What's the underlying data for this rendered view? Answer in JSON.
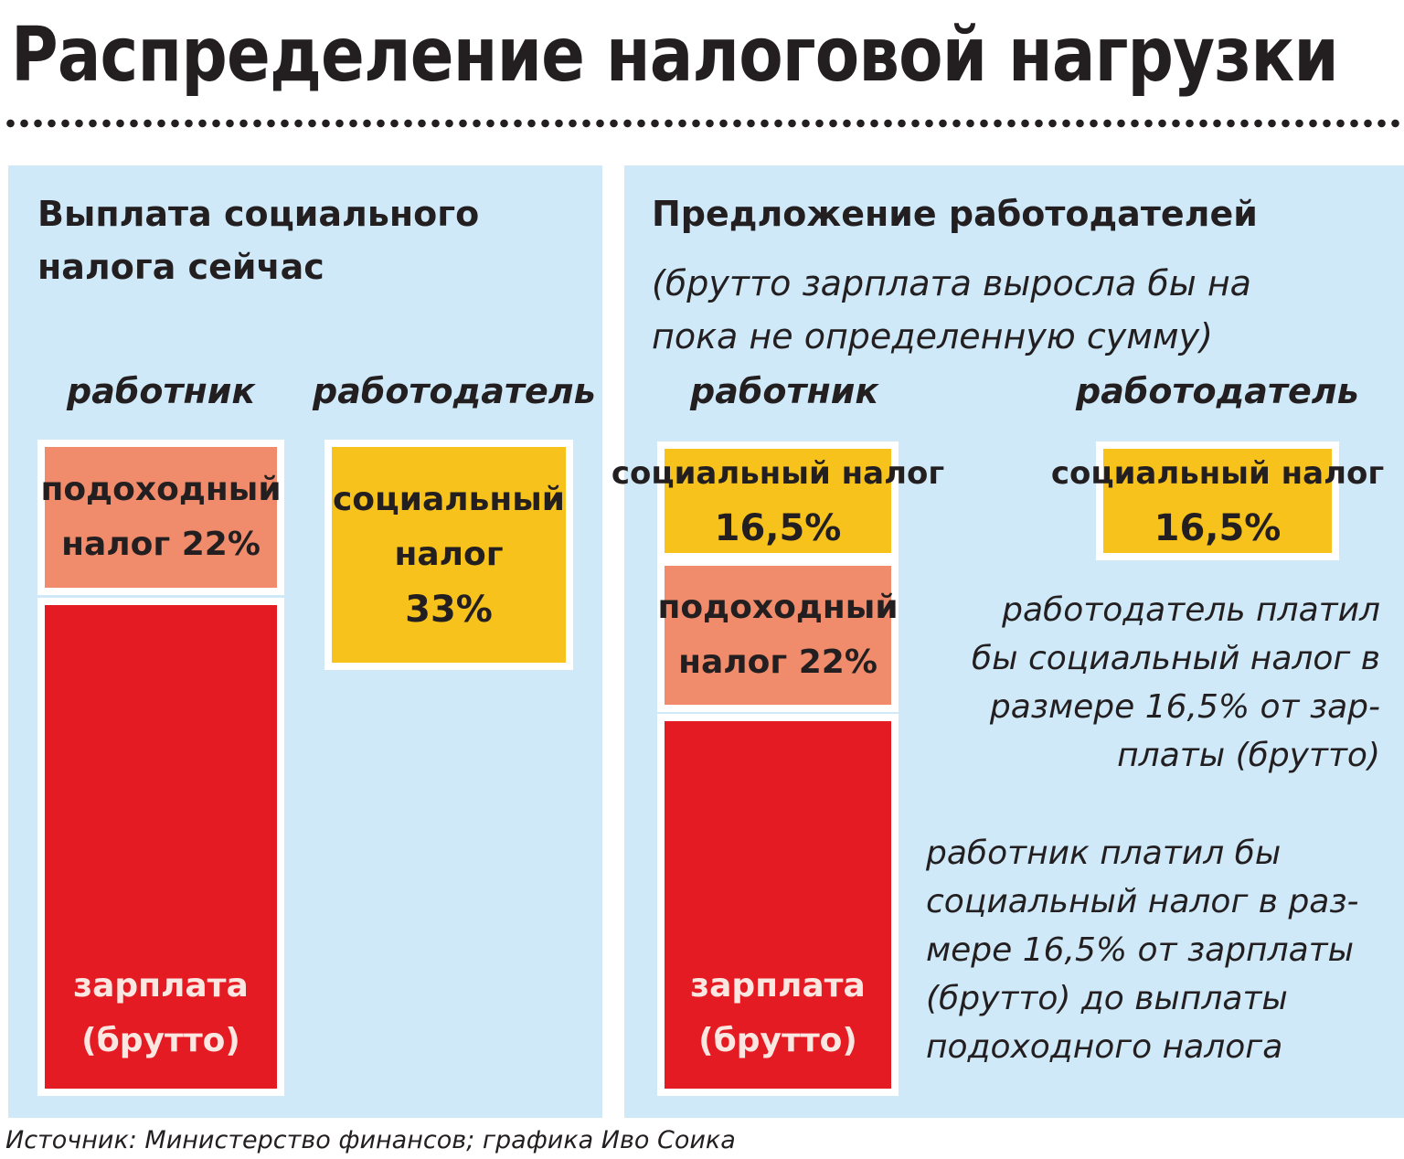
{
  "title": "Распределение налоговой нагрузки",
  "left_panel": {
    "heading": [
      "Выплата социального",
      "налога сейчас"
    ],
    "col_employee": "работник",
    "col_employer": "работодатель",
    "employee_income_tax": [
      "подоходный",
      "налог 22%"
    ],
    "employee_salary": [
      "зарплата",
      "(брутто)"
    ],
    "employer_social_tax": [
      "социальный",
      "налог",
      "33%"
    ]
  },
  "right_panel": {
    "heading": "Предложение работодателей",
    "subheading": [
      "(брутто зарплата выросла бы на",
      "пока не определенную сумму)"
    ],
    "col_employee": "работник",
    "col_employer": "работодатель",
    "employee_social_tax": [
      "социальный налог",
      "16,5%"
    ],
    "employee_income_tax": [
      "подоходный",
      "налог 22%"
    ],
    "employee_salary": [
      "зарплата",
      "(брутто)"
    ],
    "employer_social_tax": [
      "социальный налог",
      "16,5%"
    ],
    "employer_note": [
      "работодатель платил",
      "бы социальный налог в",
      "размере 16,5% от зар-",
      "платы (брутто)"
    ],
    "employee_note": [
      "работник платил бы",
      "социальный налог в раз-",
      "мере 16,5% от зарплаты",
      "(брутто) до выплаты",
      "подоходного налога"
    ]
  },
  "source": "Источник: Министерство финансов; графика Иво Соикa",
  "colors": {
    "panel_bg": "#cfe9f8",
    "income_tax": "#f08c6c",
    "social_tax": "#f7c21c",
    "salary": "#e51b23"
  }
}
